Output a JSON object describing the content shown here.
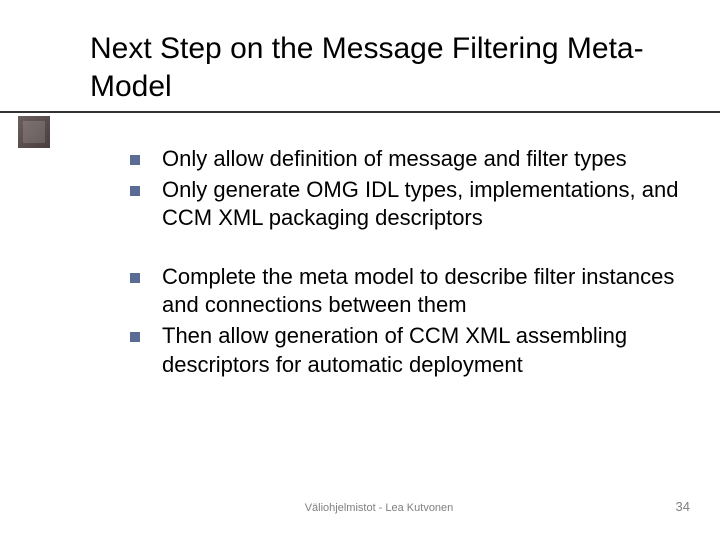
{
  "title": "Next Step on the Message Filtering Meta-Model",
  "bullet_groups": [
    {
      "items": [
        "Only allow definition of message and filter types",
        "Only generate OMG IDL types, implementations, and CCM XML packaging descriptors"
      ]
    },
    {
      "items": [
        "Complete the meta model to describe filter instances and connections between them",
        "Then allow generation of CCM XML assembling descriptors for automatic deployment"
      ]
    }
  ],
  "footer": "Väliohjelmistot - Lea Kutvonen",
  "page_number": "34",
  "colors": {
    "background": "#ffffff",
    "text": "#000000",
    "bullet": "#5b6c94",
    "footer": "#808080",
    "accent": "#4a3d3d",
    "underline": "#333333"
  },
  "typography": {
    "title_fontsize": 30,
    "body_fontsize": 22,
    "footer_fontsize": 11,
    "page_number_fontsize": 13,
    "font_family": "Verdana"
  }
}
